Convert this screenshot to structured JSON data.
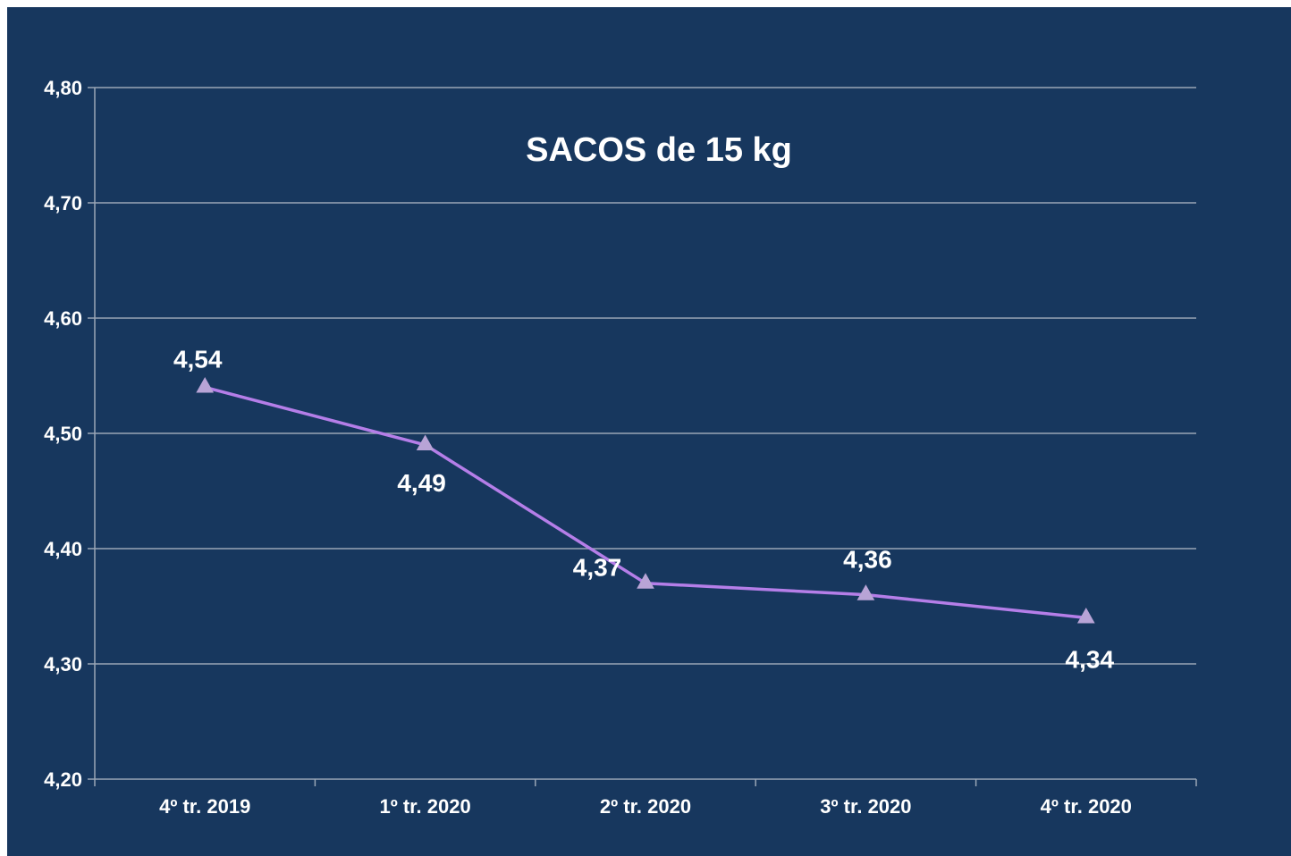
{
  "chart_data": {
    "type": "line",
    "title": "SACOS de 15 kg",
    "categories": [
      "4º tr. 2019",
      "1º tr. 2020",
      "2º tr. 2020",
      "3º tr. 2020",
      "4º tr. 2020"
    ],
    "series": [
      {
        "values": [
          4.54,
          4.49,
          4.37,
          4.36,
          4.34
        ],
        "data_labels": [
          "4,54",
          "4,49",
          "4,37",
          "4,36",
          "4,34"
        ],
        "color": "#b57ee8",
        "marker": "triangle",
        "marker_color": "#b8a4d6"
      }
    ],
    "ylim": [
      4.2,
      4.8
    ],
    "yticks": [
      4.2,
      4.3,
      4.4,
      4.5,
      4.6,
      4.7,
      4.8
    ],
    "ytick_labels": [
      "4,20",
      "4,30",
      "4,40",
      "4,50",
      "4,60",
      "4,70",
      "4,80"
    ],
    "xlabel": "",
    "ylabel": "",
    "grid": true,
    "legend": "none",
    "colors": {
      "background": "#17375e",
      "text": "#ffffff",
      "grid": "#9aa6b6"
    }
  }
}
